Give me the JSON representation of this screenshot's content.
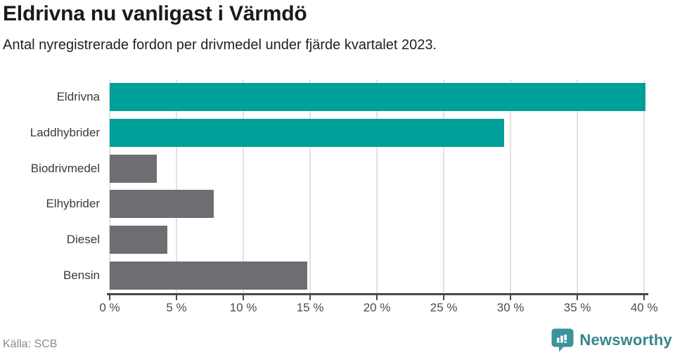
{
  "title": "Eldrivna nu vanligast i Värmdö",
  "subtitle": "Antal nyregistrerade fordon per drivmedel under fjärde kvartalet 2023.",
  "footer": {
    "source": "Källa: SCB",
    "brand": "Newsworthy",
    "brand_icon": "newsworthy-bar-chart-bubble-icon"
  },
  "colors": {
    "highlight_teal": "#00a09a",
    "bar_gray": "#6d6d72",
    "gridline": "#e2e2e2",
    "axis": "#48484b",
    "brand_teal": "#36858d",
    "title_text": "#1a1a1a",
    "category_label": "#3a3a3a",
    "tick_label": "#4c4c4c",
    "source_text": "#8c8c8c"
  },
  "chart_data": {
    "type": "bar",
    "orientation": "horizontal",
    "title": "Eldrivna nu vanligast i Värmdö",
    "subtitle": "Antal nyregistrerade fordon per drivmedel under fjärde kvartalet 2023.",
    "xlabel": "",
    "ylabel": "",
    "categories": [
      "Eldrivna",
      "Laddhybrider",
      "Biodrivmedel",
      "Elhybrider",
      "Diesel",
      "Bensin"
    ],
    "values": [
      40.1,
      29.5,
      3.5,
      7.8,
      4.3,
      14.8
    ],
    "unit": "%",
    "bar_colors": [
      "#00a09a",
      "#00a09a",
      "#6d6d72",
      "#6d6d72",
      "#6d6d72",
      "#6d6d72"
    ],
    "xlim": [
      0,
      40.2
    ],
    "x_ticks": [
      0,
      5,
      10,
      15,
      20,
      25,
      30,
      35,
      40
    ],
    "x_tick_labels": [
      "0 %",
      "5 %",
      "10 %",
      "15 %",
      "20 %",
      "25 %",
      "30 %",
      "35 %",
      "40 %"
    ],
    "grid": "vertical",
    "legend": "none"
  }
}
